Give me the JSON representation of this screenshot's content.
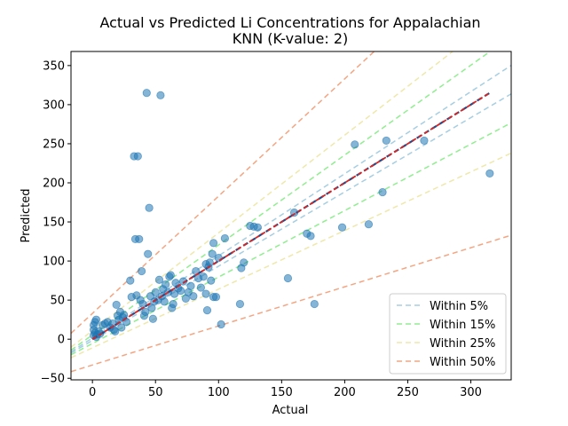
{
  "chart_data": {
    "type": "scatter",
    "title_line1": "Actual vs Predicted Li Concentrations for Appalachian",
    "title_line2": "KNN (K-value: 2)",
    "xlabel": "Actual",
    "ylabel": "Predicted",
    "xlim": [
      -17,
      332
    ],
    "ylim": [
      -52,
      368
    ],
    "xticks": [
      0,
      50,
      100,
      150,
      200,
      250,
      300
    ],
    "yticks": [
      -50,
      0,
      50,
      100,
      150,
      200,
      250,
      300,
      350
    ],
    "grid": false,
    "legend_position": "lower right",
    "point_color": "#1f77b4",
    "bands": [
      {
        "name": "Within 5%",
        "fraction": 0.05,
        "offset": 1.6,
        "color": "#a6cee3"
      },
      {
        "name": "Within 15%",
        "fraction": 0.15,
        "offset": 5.5,
        "color": "#90ee90"
      },
      {
        "name": "Within 25%",
        "fraction": 0.25,
        "offset": 11,
        "color": "#eee8aa"
      },
      {
        "name": "Within 50%",
        "fraction": 0.5,
        "offset": 33,
        "color": "#f4a582"
      }
    ],
    "identity_line": {
      "colors": [
        "#d62728",
        "#1f4e8c"
      ],
      "from": 0,
      "to": 315
    },
    "points": [
      [
        1,
        5
      ],
      [
        2,
        8
      ],
      [
        3,
        3
      ],
      [
        4,
        6
      ],
      [
        1,
        18
      ],
      [
        2,
        22
      ],
      [
        3,
        25
      ],
      [
        1,
        12
      ],
      [
        5,
        10
      ],
      [
        6,
        7
      ],
      [
        8,
        18
      ],
      [
        10,
        20
      ],
      [
        12,
        22
      ],
      [
        14,
        15
      ],
      [
        16,
        20
      ],
      [
        17,
        12
      ],
      [
        18,
        10
      ],
      [
        19,
        44
      ],
      [
        20,
        30
      ],
      [
        21,
        25
      ],
      [
        22,
        35
      ],
      [
        23,
        15
      ],
      [
        24,
        28
      ],
      [
        25,
        31
      ],
      [
        27,
        22
      ],
      [
        30,
        75
      ],
      [
        31,
        54
      ],
      [
        33,
        234
      ],
      [
        34,
        128
      ],
      [
        35,
        56
      ],
      [
        36,
        234
      ],
      [
        37,
        128
      ],
      [
        38,
        50
      ],
      [
        39,
        87
      ],
      [
        40,
        45
      ],
      [
        41,
        30
      ],
      [
        42,
        35
      ],
      [
        43,
        315
      ],
      [
        44,
        109
      ],
      [
        45,
        168
      ],
      [
        46,
        55
      ],
      [
        47,
        40
      ],
      [
        48,
        26
      ],
      [
        49,
        48
      ],
      [
        50,
        60
      ],
      [
        52,
        50
      ],
      [
        53,
        76
      ],
      [
        54,
        312
      ],
      [
        55,
        55
      ],
      [
        56,
        64
      ],
      [
        57,
        48
      ],
      [
        58,
        70
      ],
      [
        60,
        60
      ],
      [
        61,
        80
      ],
      [
        62,
        82
      ],
      [
        63,
        40
      ],
      [
        64,
        45
      ],
      [
        65,
        58
      ],
      [
        66,
        72
      ],
      [
        68,
        65
      ],
      [
        70,
        62
      ],
      [
        72,
        74
      ],
      [
        74,
        52
      ],
      [
        76,
        60
      ],
      [
        78,
        68
      ],
      [
        80,
        55
      ],
      [
        82,
        87
      ],
      [
        84,
        78
      ],
      [
        86,
        66
      ],
      [
        88,
        80
      ],
      [
        90,
        96
      ],
      [
        90,
        58
      ],
      [
        91,
        37
      ],
      [
        92,
        92
      ],
      [
        93,
        98
      ],
      [
        94,
        75
      ],
      [
        95,
        109
      ],
      [
        96,
        123
      ],
      [
        96,
        54
      ],
      [
        98,
        54
      ],
      [
        100,
        104
      ],
      [
        102,
        19
      ],
      [
        105,
        129
      ],
      [
        117,
        45
      ],
      [
        118,
        91
      ],
      [
        120,
        98
      ],
      [
        125,
        145
      ],
      [
        128,
        144
      ],
      [
        131,
        143
      ],
      [
        155,
        78
      ],
      [
        160,
        162
      ],
      [
        170,
        135
      ],
      [
        173,
        132
      ],
      [
        176,
        45
      ],
      [
        198,
        143
      ],
      [
        208,
        249
      ],
      [
        219,
        147
      ],
      [
        230,
        188
      ],
      [
        233,
        254
      ],
      [
        263,
        254
      ],
      [
        315,
        212
      ]
    ]
  }
}
